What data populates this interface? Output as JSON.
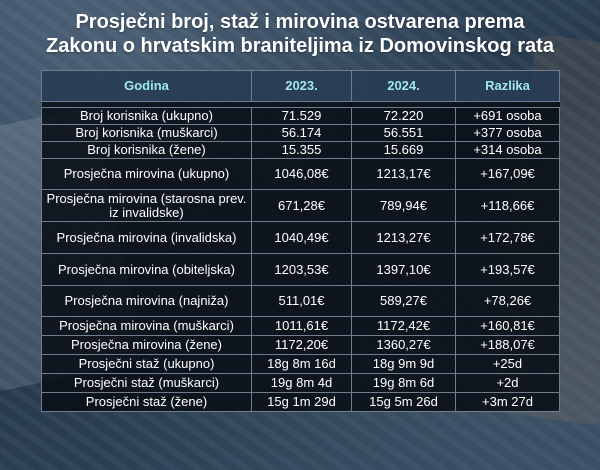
{
  "title": {
    "line1": "Prosječni broj, staž i mirovina ostvarena prema",
    "line2": "Zakonu o hrvatskim braniteljima iz Domovinskog rata"
  },
  "table": {
    "headers": [
      "Godina",
      "2023.",
      "2024.",
      "Razlika"
    ],
    "rows": [
      {
        "label": "Broj korisnika (ukupno)",
        "y2023": "71.529",
        "y2024": "72.220",
        "diff": "+691 osoba"
      },
      {
        "label": "Broj korisnika (muškarci)",
        "y2023": "56.174",
        "y2024": "56.551",
        "diff": "+377 osoba"
      },
      {
        "label": "Broj korisnika (žene)",
        "y2023": "15.355",
        "y2024": "15.669",
        "diff": "+314 osoba"
      },
      {
        "label": "Prosječna mirovina (ukupno)",
        "y2023": "1046,08€",
        "y2024": "1213,17€",
        "diff": "+167,09€"
      },
      {
        "label": "Prosječna mirovina (starosna prev. iz invalidske)",
        "y2023": "671,28€",
        "y2024": "789,94€",
        "diff": "+118,66€"
      },
      {
        "label": "Prosječna mirovina (invalidska)",
        "y2023": "1040,49€",
        "y2024": "1213,27€",
        "diff": "+172,78€"
      },
      {
        "label": "Prosječna mirovina (obiteljska)",
        "y2023": "1203,53€",
        "y2024": "1397,10€",
        "diff": "+193,57€"
      },
      {
        "label": "Prosječna mirovina (najniža)",
        "y2023": "511,01€",
        "y2024": "589,27€",
        "diff": "+78,26€"
      },
      {
        "label": "Prosječna mirovina (muškarci)",
        "y2023": "1011,61€",
        "y2024": "1172,42€",
        "diff": "+160,81€"
      },
      {
        "label": "Prosječna mirovina (žene)",
        "y2023": "1172,20€",
        "y2024": "1360,27€",
        "diff": "+188,07€"
      },
      {
        "label": "Prosječni staž (ukupno)",
        "y2023": "18g 8m 16d",
        "y2024": "18g 9m 9d",
        "diff": "+25d"
      },
      {
        "label": "Prosječni staž (muškarci)",
        "y2023": "19g 8m 4d",
        "y2024": "19g 8m 6d",
        "diff": "+2d"
      },
      {
        "label": "Prosječni staž (žene)",
        "y2023": "15g 1m 29d",
        "y2024": "15g 5m 26d",
        "diff": "+3m 27d"
      }
    ]
  }
}
